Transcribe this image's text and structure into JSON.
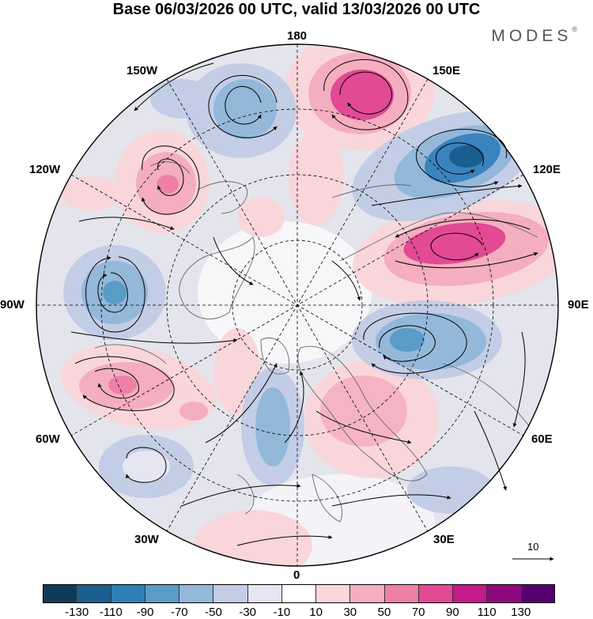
{
  "title": "Base 06/03/2026 00 UTC, valid 13/03/2026 00 UTC",
  "brand": "MODES",
  "brand_mark": "®",
  "longitude_labels": {
    "top": "180",
    "bottom": "0",
    "left": "90W",
    "right": "90E",
    "upper_left_1": "150W",
    "upper_left_2": "120W",
    "lower_left_1": "60W",
    "lower_left_2": "30W",
    "upper_right_1": "150E",
    "upper_right_2": "120E",
    "lower_right_1": "60E",
    "lower_right_2": "30E"
  },
  "reference_vector_label": "10",
  "colorbar": {
    "colors": [
      "#0e3b5c",
      "#195f8f",
      "#2d7fb5",
      "#5a9cc8",
      "#93b8da",
      "#c3cde6",
      "#e6e6f2",
      "#ffffff",
      "#f9d6da",
      "#f4aec0",
      "#ee80a8",
      "#e24a93",
      "#c41a8a",
      "#8e0a7e",
      "#56006e"
    ],
    "ticks": [
      "-130",
      "-110",
      "-90",
      "-70",
      "-50",
      "-30",
      "-10",
      "10",
      "30",
      "50",
      "70",
      "90",
      "110",
      "130"
    ]
  },
  "colors": {
    "negative_mid": "#9bb7d8",
    "negative_strong": "#3b83bd",
    "positive_mid": "#f2a9bf",
    "positive_strong": "#e3559a",
    "neutral": "#e4e4ec",
    "land_line": "#666666"
  }
}
